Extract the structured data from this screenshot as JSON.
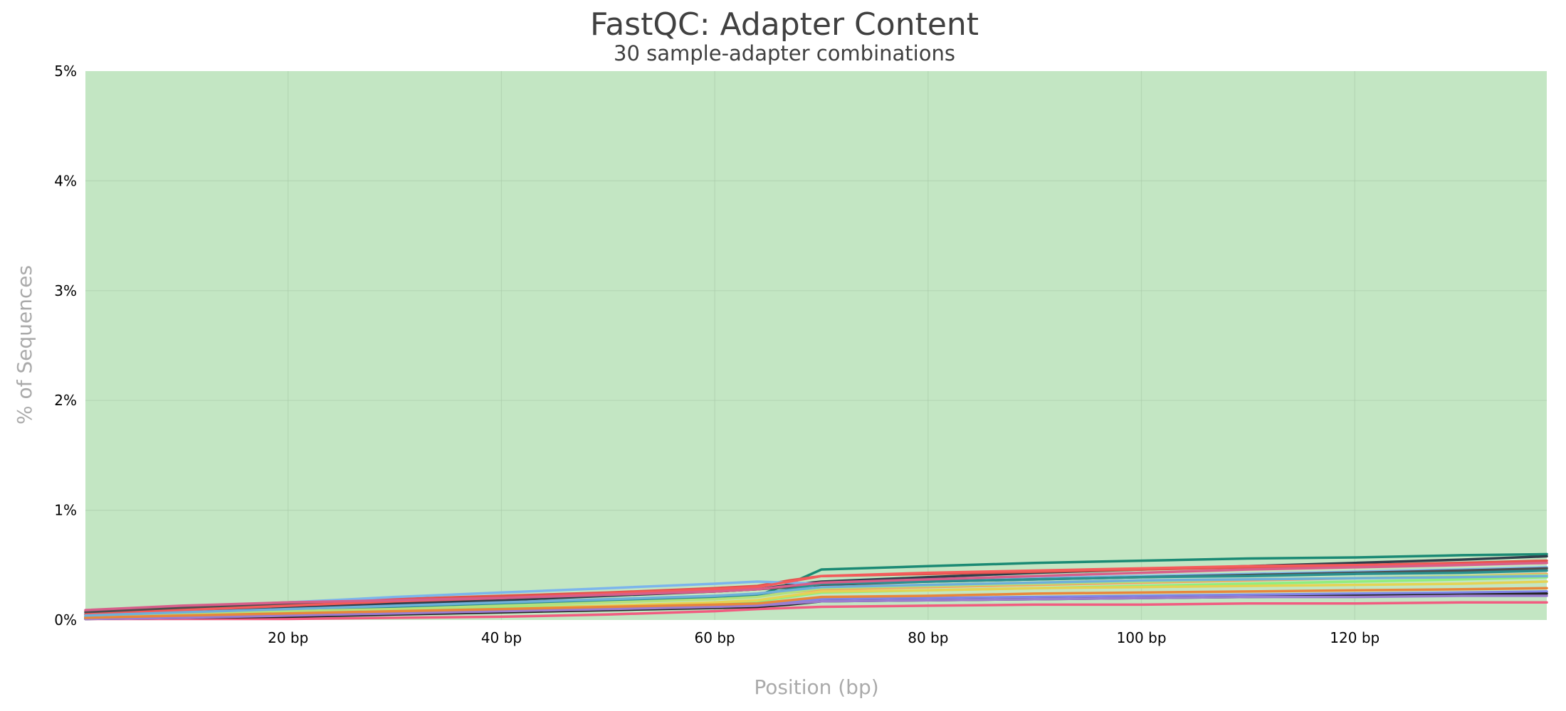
{
  "chart_data": {
    "type": "line",
    "title": "FastQC: Adapter Content",
    "subtitle": "30 sample-adapter combinations",
    "xlabel": "Position (bp)",
    "ylabel": "% of Sequences",
    "xlim": [
      1,
      138
    ],
    "ylim": [
      0,
      5
    ],
    "x_ticks": [
      {
        "value": 20,
        "label": "20 bp"
      },
      {
        "value": 40,
        "label": "40 bp"
      },
      {
        "value": 60,
        "label": "60 bp"
      },
      {
        "value": 80,
        "label": "80 bp"
      },
      {
        "value": 100,
        "label": "100 bp"
      },
      {
        "value": 120,
        "label": "120 bp"
      }
    ],
    "y_ticks": [
      {
        "value": 0,
        "label": "0%"
      },
      {
        "value": 1,
        "label": "1%"
      },
      {
        "value": 2,
        "label": "2%"
      },
      {
        "value": 3,
        "label": "3%"
      },
      {
        "value": 4,
        "label": "4%"
      },
      {
        "value": 5,
        "label": "5%"
      }
    ],
    "grid": true,
    "background_band": {
      "from": 0,
      "to": 5,
      "color": "#c3e6c3"
    },
    "x": [
      1,
      10,
      20,
      30,
      40,
      50,
      60,
      64,
      67,
      70,
      80,
      90,
      100,
      110,
      120,
      130,
      138
    ],
    "series": [
      {
        "color": "#1b8a74",
        "values": [
          0.02,
          0.05,
          0.08,
          0.11,
          0.14,
          0.17,
          0.2,
          0.22,
          0.33,
          0.46,
          0.49,
          0.52,
          0.54,
          0.56,
          0.57,
          0.59,
          0.6
        ]
      },
      {
        "color": "#2f3e4a",
        "values": [
          0.05,
          0.09,
          0.12,
          0.15,
          0.18,
          0.22,
          0.26,
          0.28,
          0.32,
          0.35,
          0.39,
          0.43,
          0.46,
          0.49,
          0.52,
          0.55,
          0.58
        ]
      },
      {
        "color": "#e0524c",
        "values": [
          0.08,
          0.12,
          0.16,
          0.19,
          0.22,
          0.25,
          0.29,
          0.31,
          0.36,
          0.4,
          0.42,
          0.44,
          0.46,
          0.48,
          0.5,
          0.52,
          0.54
        ]
      },
      {
        "color": "#7cb5ec",
        "values": [
          0.06,
          0.11,
          0.16,
          0.21,
          0.25,
          0.29,
          0.33,
          0.35,
          0.34,
          0.33,
          0.36,
          0.38,
          0.4,
          0.42,
          0.44,
          0.46,
          0.48
        ]
      },
      {
        "color": "#4d4d4d",
        "values": [
          0.07,
          0.11,
          0.14,
          0.17,
          0.2,
          0.23,
          0.26,
          0.28,
          0.3,
          0.32,
          0.35,
          0.37,
          0.39,
          0.41,
          0.43,
          0.45,
          0.47
        ]
      },
      {
        "color": "#f7a35c",
        "values": [
          0.03,
          0.06,
          0.09,
          0.11,
          0.14,
          0.17,
          0.2,
          0.22,
          0.25,
          0.28,
          0.3,
          0.32,
          0.34,
          0.36,
          0.38,
          0.4,
          0.42
        ]
      },
      {
        "color": "#90ed7d",
        "values": [
          0.02,
          0.05,
          0.07,
          0.09,
          0.11,
          0.13,
          0.15,
          0.17,
          0.21,
          0.25,
          0.27,
          0.29,
          0.31,
          0.33,
          0.35,
          0.37,
          0.39
        ]
      },
      {
        "color": "#8085e9",
        "values": [
          0.01,
          0.03,
          0.05,
          0.07,
          0.09,
          0.11,
          0.13,
          0.14,
          0.16,
          0.19,
          0.2,
          0.21,
          0.22,
          0.23,
          0.24,
          0.25,
          0.26
        ]
      },
      {
        "color": "#e4d354",
        "values": [
          0.02,
          0.04,
          0.06,
          0.08,
          0.1,
          0.13,
          0.16,
          0.18,
          0.22,
          0.26,
          0.27,
          0.29,
          0.3,
          0.31,
          0.32,
          0.33,
          0.35
        ]
      },
      {
        "color": "#2b908f",
        "values": [
          0.03,
          0.06,
          0.09,
          0.12,
          0.15,
          0.18,
          0.21,
          0.23,
          0.28,
          0.33,
          0.35,
          0.37,
          0.39,
          0.4,
          0.42,
          0.43,
          0.45
        ]
      },
      {
        "color": "#f15c80",
        "values": [
          0.01,
          0.01,
          0.01,
          0.02,
          0.03,
          0.05,
          0.08,
          0.1,
          0.11,
          0.12,
          0.13,
          0.14,
          0.14,
          0.15,
          0.15,
          0.16,
          0.16
        ]
      },
      {
        "color": "#222222",
        "values": [
          0.01,
          0.02,
          0.03,
          0.05,
          0.07,
          0.09,
          0.11,
          0.12,
          0.14,
          0.17,
          0.18,
          0.19,
          0.2,
          0.21,
          0.22,
          0.23,
          0.24
        ]
      },
      {
        "color": "#f45b5b",
        "values": [
          0.05,
          0.09,
          0.13,
          0.17,
          0.2,
          0.24,
          0.28,
          0.3,
          0.35,
          0.4,
          0.43,
          0.45,
          0.47,
          0.49,
          0.5,
          0.51,
          0.52
        ]
      },
      {
        "color": "#b4e07c",
        "values": [
          0.02,
          0.05,
          0.08,
          0.1,
          0.13,
          0.16,
          0.19,
          0.21,
          0.25,
          0.29,
          0.31,
          0.33,
          0.35,
          0.37,
          0.38,
          0.4,
          0.41
        ]
      },
      {
        "color": "#9b7dcf",
        "values": [
          0.01,
          0.02,
          0.04,
          0.06,
          0.08,
          0.1,
          0.12,
          0.13,
          0.15,
          0.17,
          0.18,
          0.19,
          0.2,
          0.21,
          0.21,
          0.22,
          0.22
        ]
      },
      {
        "color": "#e8873a",
        "values": [
          0.02,
          0.04,
          0.06,
          0.08,
          0.1,
          0.12,
          0.14,
          0.15,
          0.18,
          0.21,
          0.22,
          0.24,
          0.25,
          0.26,
          0.27,
          0.28,
          0.29
        ]
      },
      {
        "color": "#d75f8a",
        "values": [
          0.09,
          0.13,
          0.16,
          0.18,
          0.2,
          0.23,
          0.26,
          0.28,
          0.31,
          0.34,
          0.37,
          0.4,
          0.43,
          0.46,
          0.48,
          0.5,
          0.52
        ]
      },
      {
        "color": "#6fb0d9",
        "values": [
          0.04,
          0.07,
          0.1,
          0.13,
          0.16,
          0.19,
          0.22,
          0.24,
          0.27,
          0.3,
          0.32,
          0.34,
          0.36,
          0.37,
          0.38,
          0.39,
          0.4
        ]
      }
    ]
  }
}
